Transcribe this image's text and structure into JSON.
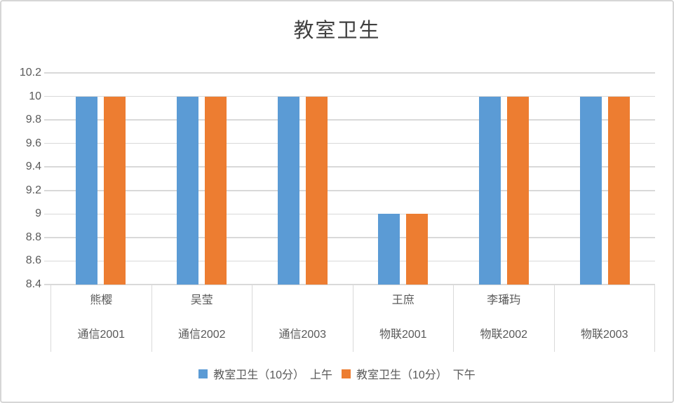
{
  "title": "教室卫生",
  "chart_data": {
    "type": "bar",
    "title": "教室卫生",
    "categories": [
      {
        "name": "熊樱",
        "class": "通信2001"
      },
      {
        "name": "吴莹",
        "class": "通信2002"
      },
      {
        "name": "",
        "class": "通信2003"
      },
      {
        "name": "王庶",
        "class": "物联2001"
      },
      {
        "name": "李璠玙",
        "class": "物联2002"
      },
      {
        "name": "",
        "class": "物联2003"
      }
    ],
    "series": [
      {
        "name": "教室卫生（10分）　上午",
        "color": "#5B9BD5",
        "values": [
          10,
          10,
          10,
          9,
          10,
          10
        ]
      },
      {
        "name": "教室卫生（10分）　下午",
        "color": "#ED7D31",
        "values": [
          10,
          10,
          10,
          9,
          10,
          10
        ]
      }
    ],
    "ylim": [
      8.4,
      10.2
    ],
    "yticks": [
      10.2,
      10,
      9.8,
      9.6,
      9.4,
      9.2,
      9,
      8.8,
      8.6,
      8.4
    ],
    "grid": true,
    "legend_position": "bottom"
  },
  "colors": {
    "gridline": "#D9D9D9",
    "axis_text": "#595959",
    "title_text": "#404040",
    "frame_border": "#D6D6D6",
    "series_morning": "#5B9BD5",
    "series_afternoon": "#ED7D31"
  }
}
